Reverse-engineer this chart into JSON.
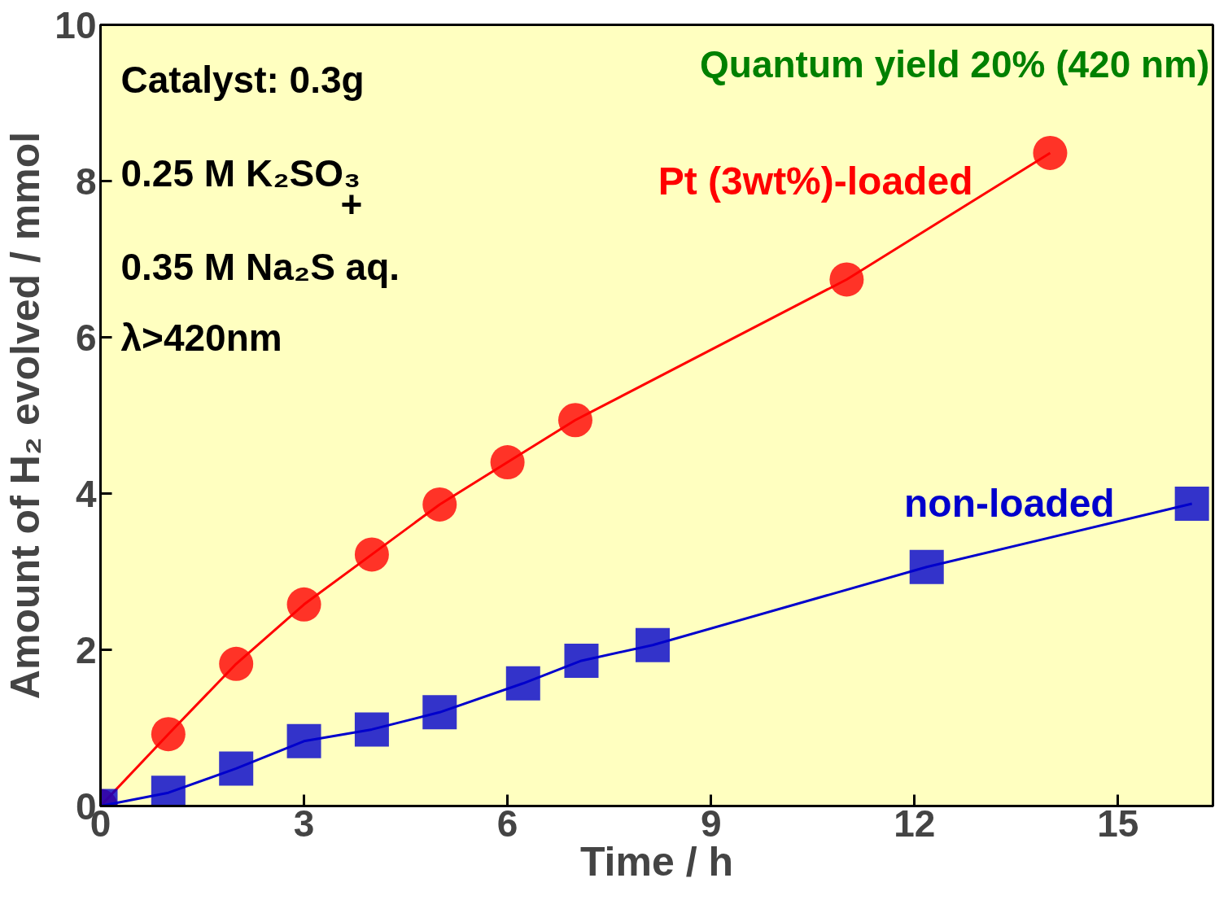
{
  "chart_data": {
    "type": "line",
    "xlabel": "Time / h",
    "ylabel": "Amount of H₂ evolved / mmol",
    "xlim": [
      0,
      16.4
    ],
    "ylim": [
      0,
      10
    ],
    "xticks": [
      0,
      3,
      6,
      9,
      12,
      15
    ],
    "yticks": [
      0,
      2,
      4,
      6,
      8,
      10
    ],
    "grid": false,
    "annotations": [
      "Catalyst: 0.3g",
      "0.25 M K₂SO₃",
      "+",
      "0.35 M Na₂S aq.",
      "λ>420nm",
      "Quantum yield 20% (420 nm)"
    ],
    "series": [
      {
        "name": "Pt (3wt%)-loaded",
        "color": "#ff0000",
        "marker": "circle",
        "x": [
          0,
          1,
          2,
          3,
          4,
          5,
          6,
          7,
          11,
          14
        ],
        "values": [
          0,
          0.92,
          1.82,
          2.58,
          3.22,
          3.86,
          4.4,
          4.94,
          6.74,
          8.36
        ]
      },
      {
        "name": "non-loaded",
        "color": "#0000cc",
        "marker": "square",
        "x": [
          0,
          1,
          2,
          3,
          4,
          5,
          6.23,
          7.09,
          8.14,
          12.18,
          16.09
        ],
        "values": [
          0,
          0.17,
          0.48,
          0.83,
          0.98,
          1.2,
          1.57,
          1.86,
          2.06,
          3.06,
          3.87
        ]
      }
    ]
  }
}
